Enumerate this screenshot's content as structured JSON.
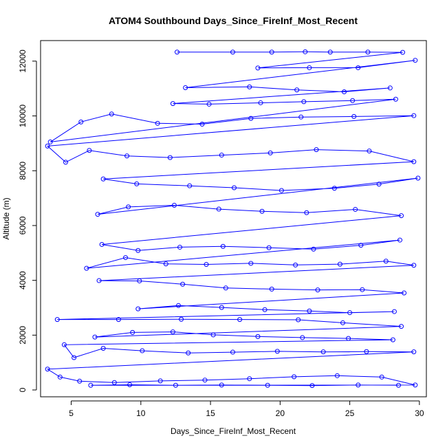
{
  "chart_data": {
    "type": "line",
    "title": "ATOM4 Southbound Days_Since_FireInf_Most_Recent",
    "xlabel": "Days_Since_FireInf_Most_Recent",
    "ylabel": "Altitude (m)",
    "xlim": [
      2.8,
      30.5
    ],
    "ylim": [
      -250,
      12750
    ],
    "xticks": [
      5,
      10,
      15,
      20,
      25,
      30
    ],
    "yticks": [
      0,
      2000,
      4000,
      6000,
      8000,
      10000,
      12000
    ],
    "grid": false,
    "series": [
      {
        "color": "#0000ff",
        "marker": "open-circle",
        "style": "line-and-points",
        "points": [
          [
            12.6,
            12330
          ],
          [
            16.6,
            12330
          ],
          [
            19.4,
            12330
          ],
          [
            21.8,
            12340
          ],
          [
            23.6,
            12330
          ],
          [
            26.3,
            12330
          ],
          [
            28.8,
            12320
          ],
          [
            18.4,
            11750
          ],
          [
            22.1,
            11760
          ],
          [
            25.6,
            11760
          ],
          [
            29.7,
            12030
          ],
          [
            13.2,
            11030
          ],
          [
            17.8,
            11060
          ],
          [
            21.2,
            10950
          ],
          [
            24.6,
            10880
          ],
          [
            27.9,
            11020
          ],
          [
            12.3,
            10450
          ],
          [
            14.9,
            10430
          ],
          [
            18.6,
            10480
          ],
          [
            21.7,
            10520
          ],
          [
            25.2,
            10560
          ],
          [
            28.3,
            10610
          ],
          [
            3.5,
            9050
          ],
          [
            5.7,
            9780
          ],
          [
            7.9,
            10070
          ],
          [
            11.2,
            9730
          ],
          [
            14.4,
            9700
          ],
          [
            17.9,
            9910
          ],
          [
            21.5,
            9960
          ],
          [
            25.3,
            9980
          ],
          [
            29.6,
            10010
          ],
          [
            3.3,
            8900
          ],
          [
            4.6,
            8310
          ],
          [
            6.3,
            8740
          ],
          [
            9.0,
            8540
          ],
          [
            12.1,
            8480
          ],
          [
            15.8,
            8570
          ],
          [
            19.3,
            8650
          ],
          [
            22.6,
            8770
          ],
          [
            26.4,
            8720
          ],
          [
            29.6,
            8330
          ],
          [
            7.3,
            7700
          ],
          [
            9.7,
            7520
          ],
          [
            13.5,
            7450
          ],
          [
            16.7,
            7380
          ],
          [
            20.1,
            7280
          ],
          [
            23.9,
            7360
          ],
          [
            27.1,
            7510
          ],
          [
            29.9,
            7730
          ],
          [
            6.9,
            6410
          ],
          [
            9.1,
            6680
          ],
          [
            12.4,
            6740
          ],
          [
            15.6,
            6600
          ],
          [
            18.7,
            6520
          ],
          [
            21.9,
            6470
          ],
          [
            25.4,
            6590
          ],
          [
            28.7,
            6360
          ],
          [
            7.2,
            5310
          ],
          [
            9.8,
            5090
          ],
          [
            12.8,
            5210
          ],
          [
            15.9,
            5240
          ],
          [
            19.2,
            5190
          ],
          [
            22.4,
            5140
          ],
          [
            25.8,
            5280
          ],
          [
            28.6,
            5470
          ],
          [
            6.1,
            4440
          ],
          [
            8.9,
            4830
          ],
          [
            11.8,
            4600
          ],
          [
            14.7,
            4580
          ],
          [
            17.9,
            4620
          ],
          [
            21.1,
            4560
          ],
          [
            24.3,
            4590
          ],
          [
            27.6,
            4700
          ],
          [
            29.6,
            4550
          ],
          [
            7.0,
            3990
          ],
          [
            9.9,
            3980
          ],
          [
            13.0,
            3860
          ],
          [
            16.1,
            3720
          ],
          [
            19.4,
            3680
          ],
          [
            22.7,
            3650
          ],
          [
            25.9,
            3660
          ],
          [
            28.9,
            3540
          ],
          [
            9.8,
            2960
          ],
          [
            12.7,
            3080
          ],
          [
            15.8,
            3010
          ],
          [
            18.9,
            2930
          ],
          [
            22.1,
            2880
          ],
          [
            25.0,
            2820
          ],
          [
            28.2,
            2860
          ],
          [
            4.0,
            2570
          ],
          [
            8.4,
            2570
          ],
          [
            12.9,
            2580
          ],
          [
            17.1,
            2570
          ],
          [
            21.3,
            2560
          ],
          [
            24.5,
            2450
          ],
          [
            28.7,
            2320
          ],
          [
            6.7,
            1930
          ],
          [
            9.4,
            2100
          ],
          [
            12.3,
            2120
          ],
          [
            15.2,
            2010
          ],
          [
            18.4,
            1950
          ],
          [
            21.6,
            1910
          ],
          [
            24.9,
            1880
          ],
          [
            28.1,
            1830
          ],
          [
            4.5,
            1650
          ],
          [
            5.2,
            1180
          ],
          [
            7.3,
            1520
          ],
          [
            10.1,
            1430
          ],
          [
            13.4,
            1350
          ],
          [
            16.6,
            1380
          ],
          [
            19.8,
            1410
          ],
          [
            23.1,
            1390
          ],
          [
            26.2,
            1400
          ],
          [
            29.6,
            1390
          ],
          [
            3.3,
            760
          ],
          [
            4.2,
            470
          ],
          [
            5.6,
            320
          ],
          [
            8.1,
            270
          ],
          [
            11.4,
            330
          ],
          [
            14.6,
            360
          ],
          [
            17.8,
            410
          ],
          [
            21.0,
            480
          ],
          [
            24.1,
            520
          ],
          [
            27.3,
            470
          ],
          [
            29.7,
            180
          ],
          [
            6.4,
            170
          ],
          [
            9.2,
            190
          ],
          [
            12.5,
            170
          ],
          [
            15.8,
            180
          ],
          [
            19.1,
            170
          ],
          [
            22.3,
            160
          ],
          [
            25.6,
            180
          ],
          [
            28.5,
            170
          ]
        ]
      }
    ]
  }
}
